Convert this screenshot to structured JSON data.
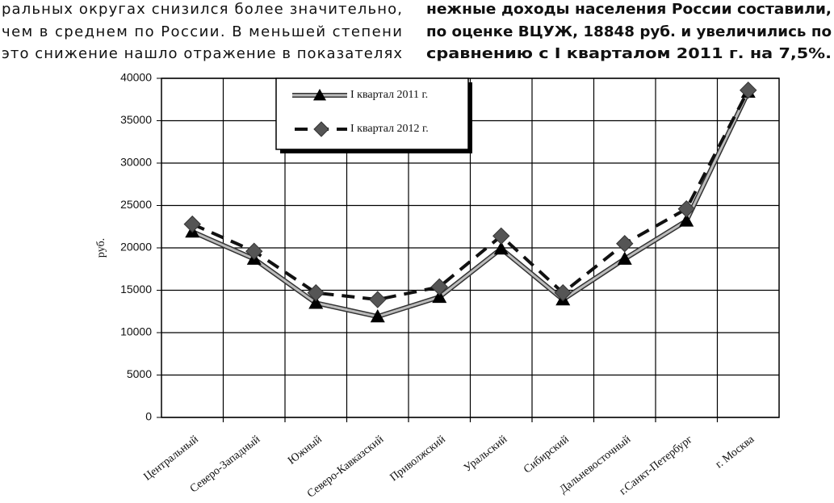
{
  "text": {
    "left_lines": [
      "ральных округах снизился более значительно,",
      "чем в среднем по России. В меньшей степени",
      "это снижение нашло отражение в показателях"
    ],
    "right_lines": [
      "нежные доходы населения России составили,",
      "по оценке ВЦУЖ, 18848 руб. и увеличились по",
      "сравнению с I кварталом 2011 г. на 7,5%."
    ]
  },
  "chart_data": {
    "type": "line",
    "y_label": "руб.",
    "categories": [
      "Центральный",
      "Северо-Западный",
      "Южный",
      "Северо-Кавказский",
      "Приволжский",
      "Уральский",
      "Сибирский",
      "Дальневосточный",
      "г.Санкт-Петербург",
      "г. Москва"
    ],
    "series": [
      {
        "name": "I квартал 2011 г.",
        "color": "#7a7a7a",
        "values": [
          21900,
          18700,
          13500,
          11900,
          14200,
          19900,
          13900,
          18700,
          23200,
          38400
        ]
      },
      {
        "name": "I квартал 2012 г.",
        "color": "#111111",
        "values": [
          22800,
          19600,
          14700,
          13900,
          15400,
          21400,
          14700,
          20500,
          24600,
          38600
        ]
      }
    ],
    "ylim": [
      0,
      40000
    ],
    "yticks": [
      0,
      5000,
      10000,
      15000,
      20000,
      25000,
      30000,
      35000,
      40000
    ],
    "grid": true
  }
}
